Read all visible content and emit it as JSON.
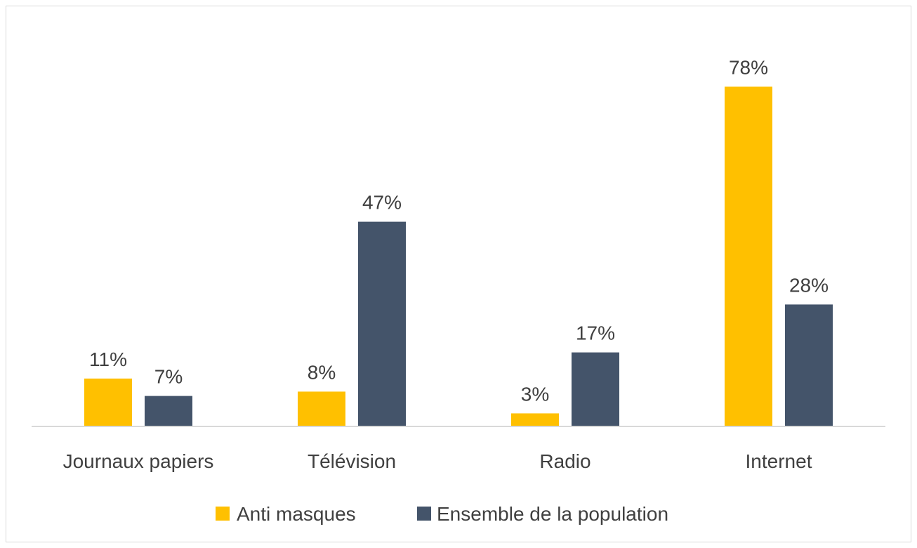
{
  "chart_data": {
    "type": "bar",
    "categories": [
      "Journaux papiers",
      "Télévision",
      "Radio",
      "Internet"
    ],
    "series": [
      {
        "name": "Anti masques",
        "color": "#FFC000",
        "values": [
          11,
          8,
          3,
          78
        ],
        "labels": [
          "11%",
          "8%",
          "3%",
          "78%"
        ]
      },
      {
        "name": "Ensemble de la population",
        "color": "#44546A",
        "values": [
          7,
          47,
          17,
          28
        ],
        "labels": [
          "7%",
          "47%",
          "17%",
          "28%"
        ]
      }
    ],
    "ylim": [
      0,
      80
    ],
    "grid": false,
    "legend": "bottom",
    "axis_color": "#d9d9d9",
    "text_color": "#404040"
  }
}
